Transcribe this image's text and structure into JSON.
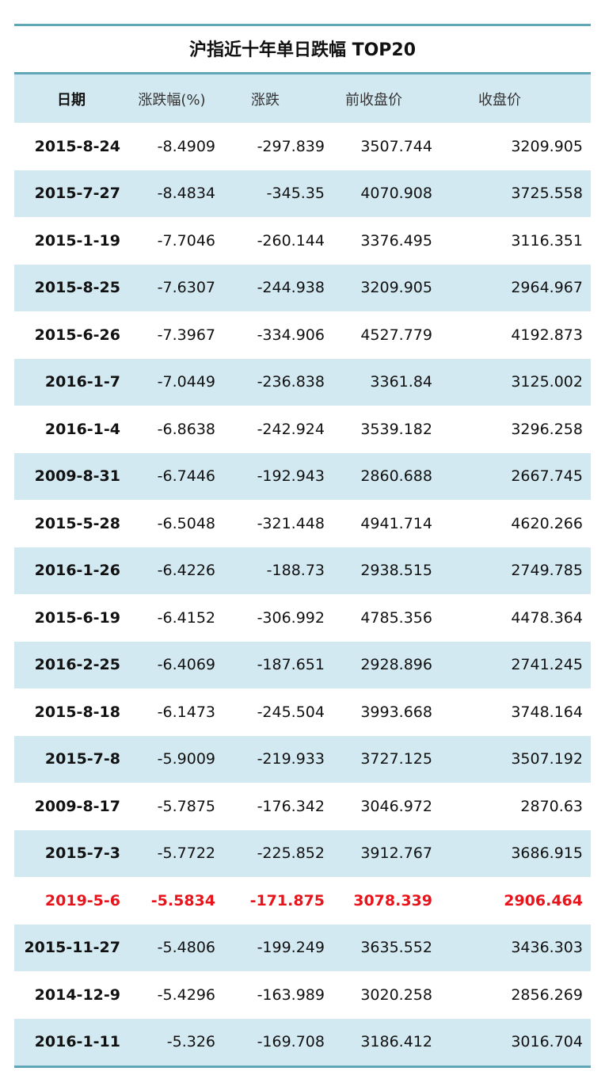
{
  "title": "沪指近十年单日跌幅  TOP20",
  "columns": [
    "日期",
    "涨跌幅(%)",
    "涨跌",
    "前收盘价",
    "收盘价"
  ],
  "highlight_color": "#e8141b",
  "rows": [
    [
      "2015-8-24",
      "-8.4909",
      "-297.839",
      "3507.744",
      "3209.905"
    ],
    [
      "2015-7-27",
      "-8.4834",
      "-345.35",
      "4070.908",
      "3725.558"
    ],
    [
      "2015-1-19",
      "-7.7046",
      "-260.144",
      "3376.495",
      "3116.351"
    ],
    [
      "2015-8-25",
      "-7.6307",
      "-244.938",
      "3209.905",
      "2964.967"
    ],
    [
      "2015-6-26",
      "-7.3967",
      "-334.906",
      "4527.779",
      "4192.873"
    ],
    [
      "2016-1-7",
      "-7.0449",
      "-236.838",
      "3361.84",
      "3125.002"
    ],
    [
      "2016-1-4",
      "-6.8638",
      "-242.924",
      "3539.182",
      "3296.258"
    ],
    [
      "2009-8-31",
      "-6.7446",
      "-192.943",
      "2860.688",
      "2667.745"
    ],
    [
      "2015-5-28",
      "-6.5048",
      "-321.448",
      "4941.714",
      "4620.266"
    ],
    [
      "2016-1-26",
      "-6.4226",
      "-188.73",
      "2938.515",
      "2749.785"
    ],
    [
      "2015-6-19",
      "-6.4152",
      "-306.992",
      "4785.356",
      "4478.364"
    ],
    [
      "2016-2-25",
      "-6.4069",
      "-187.651",
      "2928.896",
      "2741.245"
    ],
    [
      "2015-8-18",
      "-6.1473",
      "-245.504",
      "3993.668",
      "3748.164"
    ],
    [
      "2015-7-8",
      "-5.9009",
      "-219.933",
      "3727.125",
      "3507.192"
    ],
    [
      "2009-8-17",
      "-5.7875",
      "-176.342",
      "3046.972",
      "2870.63"
    ],
    [
      "2015-7-3",
      "-5.7722",
      "-225.852",
      "3912.767",
      "3686.915"
    ],
    [
      "2019-5-6",
      "-5.5834",
      "-171.875",
      "3078.339",
      "2906.464"
    ],
    [
      "2015-11-27",
      "-5.4806",
      "-199.249",
      "3635.552",
      "3436.303"
    ],
    [
      "2014-12-9",
      "-5.4296",
      "-163.989",
      "3020.258",
      "2856.269"
    ],
    [
      "2016-1-11",
      "-5.326",
      "-169.708",
      "3186.412",
      "3016.704"
    ]
  ],
  "highlighted_row": 16
}
